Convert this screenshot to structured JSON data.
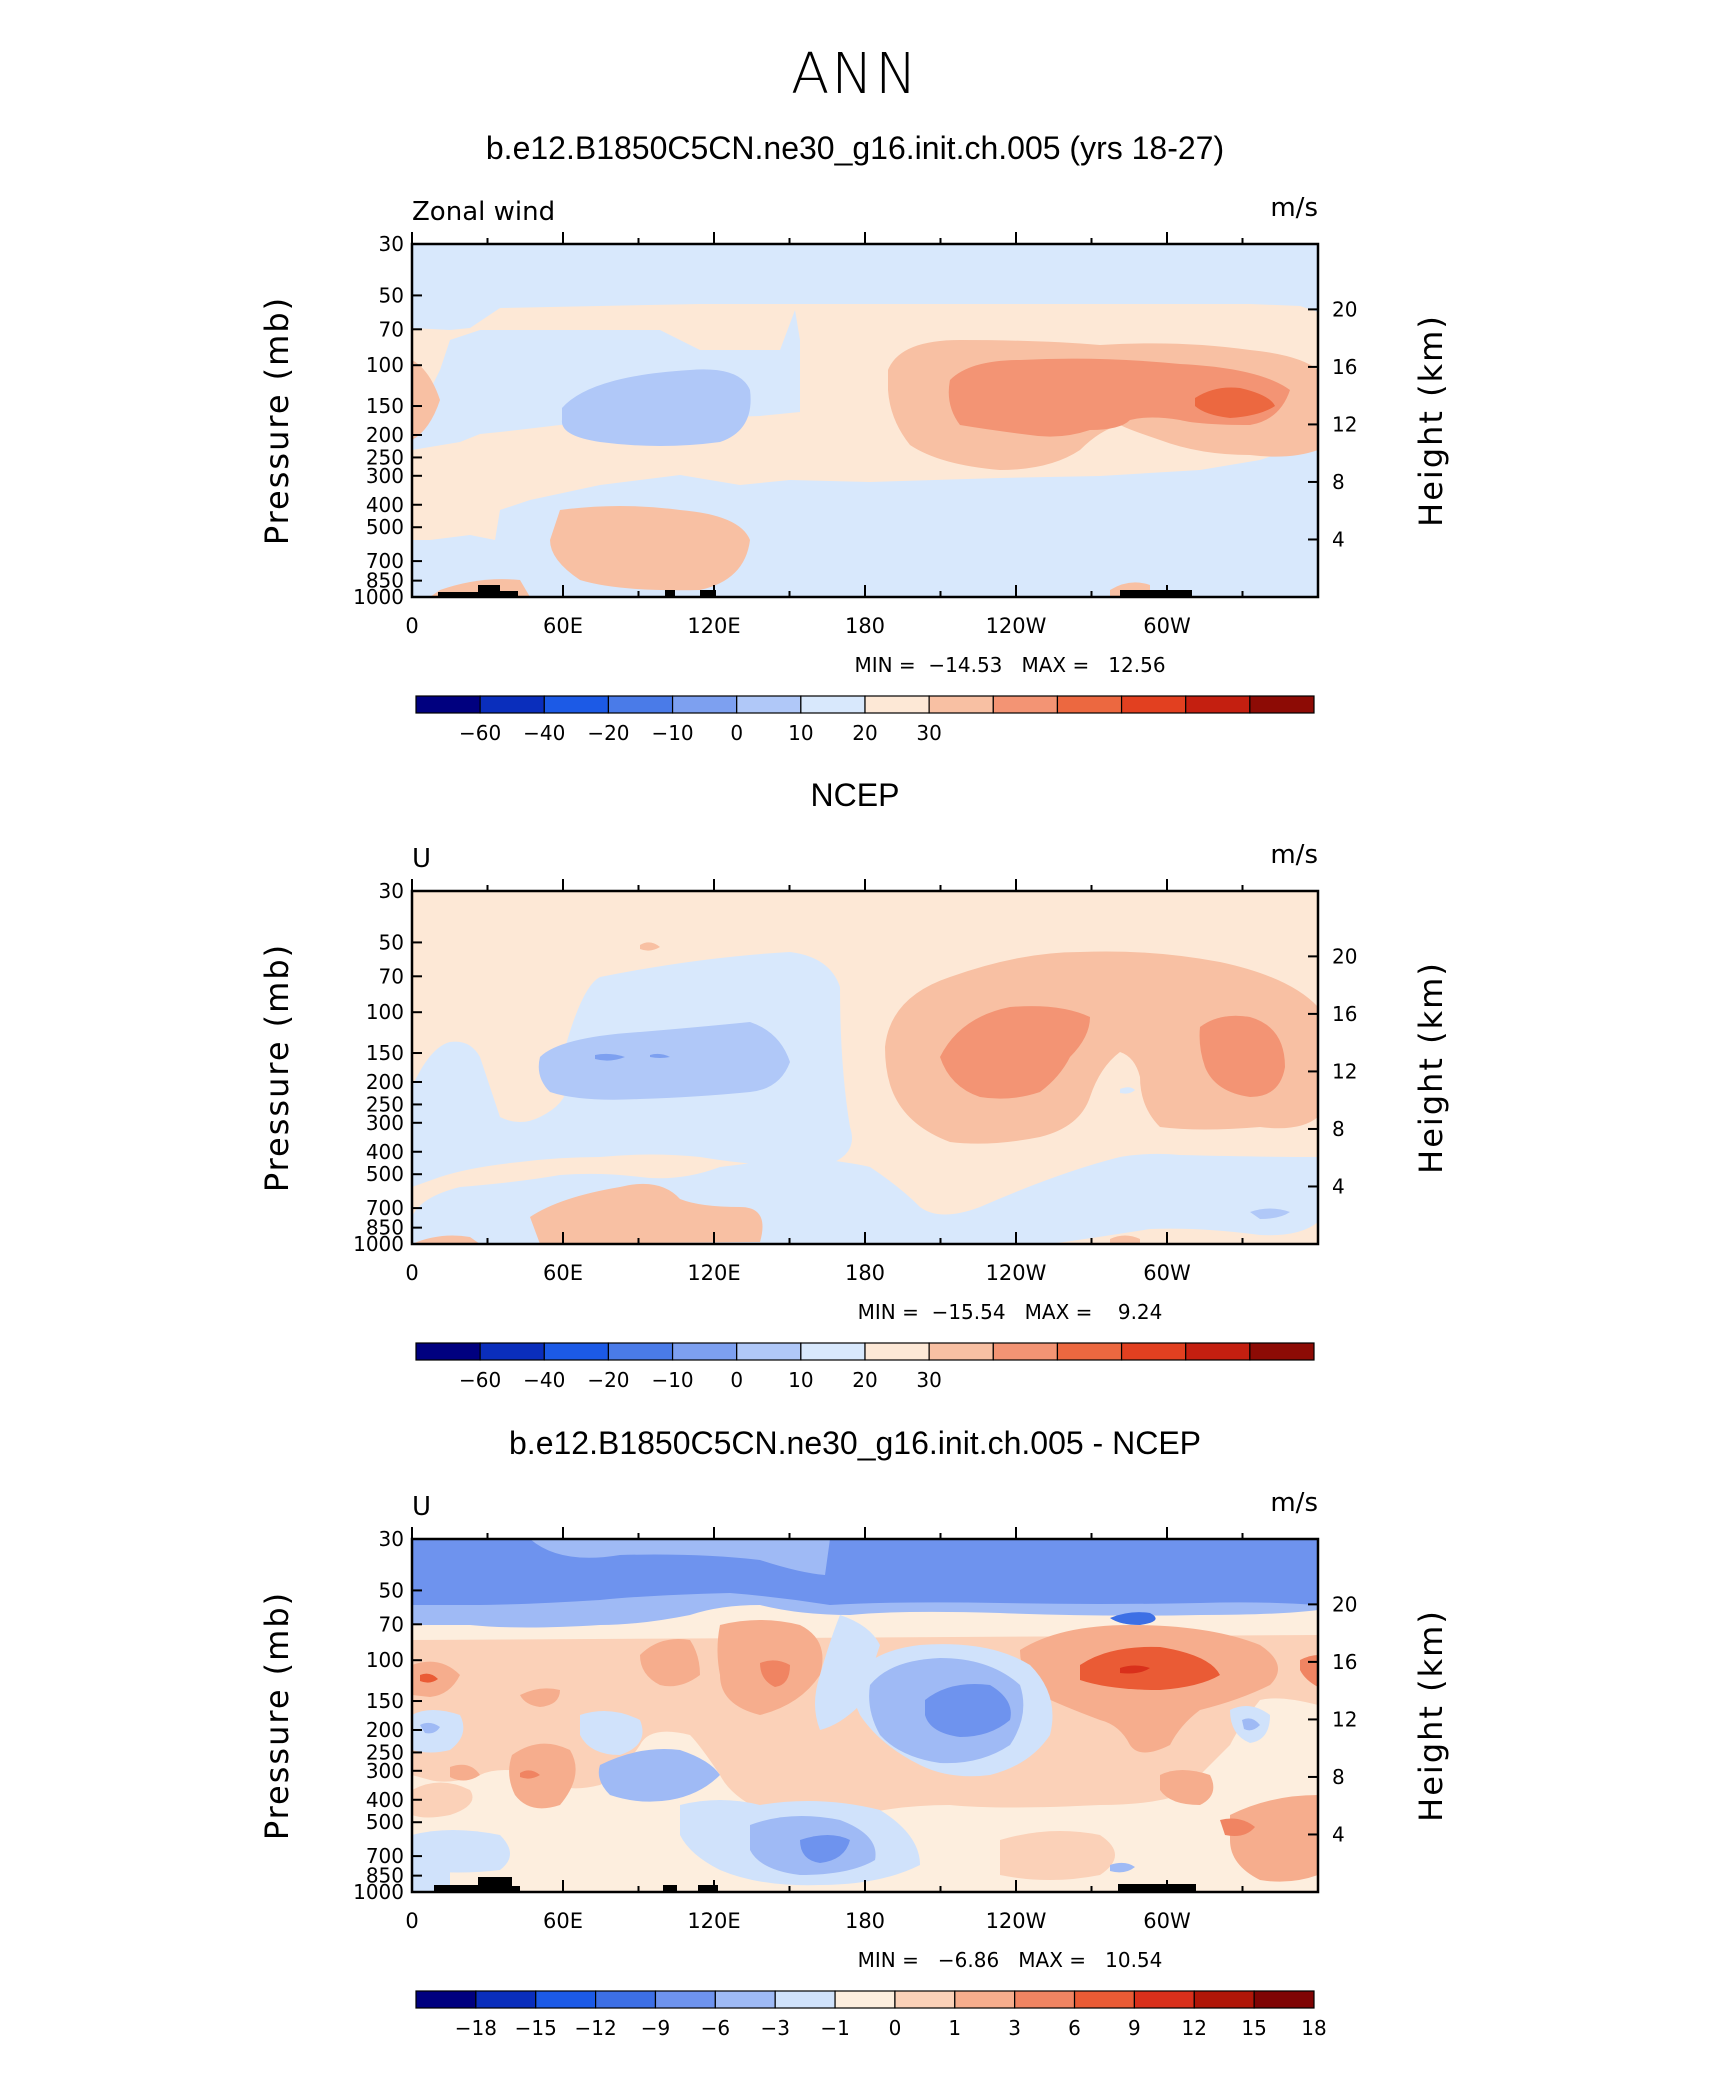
{
  "page": {
    "title": "ANN"
  },
  "common": {
    "y_axis_label": "Pressure (mb)",
    "right_axis_label": "Height (km)",
    "units": "m/s",
    "pressure_ticks": [
      "30",
      "50",
      "70",
      "100",
      "150",
      "200",
      "250",
      "300",
      "400",
      "500",
      "700",
      "850",
      "1000"
    ],
    "pressure_values": [
      30,
      50,
      70,
      100,
      150,
      200,
      250,
      300,
      400,
      500,
      700,
      850,
      1000
    ],
    "height_ticks": [
      "20",
      "16",
      "12",
      "8",
      "4"
    ],
    "height_values": [
      20,
      16,
      12,
      8,
      4
    ],
    "lon_ticks": [
      "0",
      "60E",
      "120E",
      "180",
      "120W",
      "60W"
    ],
    "lon_values": [
      0,
      60,
      120,
      180,
      240,
      300
    ],
    "lon_range": [
      0,
      360
    ],
    "pressure_range": [
      30,
      1000
    ],
    "colors_main": [
      "#00007f",
      "#0a2ebc",
      "#1c5ae6",
      "#4a7be8",
      "#7da0f0",
      "#b0c8f8",
      "#d8e8fc",
      "#fde8d6",
      "#f8c0a3",
      "#f39474",
      "#ec6840",
      "#e24020",
      "#c41f10",
      "#8d0b05"
    ],
    "colors_diff": [
      "#00007f",
      "#0a2ebc",
      "#1c5ae6",
      "#3d6fe5",
      "#6e93ee",
      "#9fbaf5",
      "#d0e2fb",
      "#fdeede",
      "#fbd1b8",
      "#f6ad8d",
      "#f08462",
      "#ea5b35",
      "#d9301b",
      "#b01608",
      "#7f0404"
    ]
  },
  "panels": [
    {
      "title": "b.e12.B1850C5CN.ne30_g16.init.ch.005 (yrs 18-27)",
      "variable_label": "Zonal wind",
      "min_max": "MIN =  −14.53   MAX =   12.56",
      "colorbar_labels": [
        "−60",
        "−40",
        "−20",
        "−10",
        "0",
        "10",
        "20",
        "30"
      ]
    },
    {
      "title": "NCEP",
      "variable_label": "U",
      "min_max": "MIN =  −15.54   MAX =    9.24",
      "colorbar_labels": [
        "−60",
        "−40",
        "−20",
        "−10",
        "0",
        "10",
        "20",
        "30"
      ]
    },
    {
      "title": "b.e12.B1850C5CN.ne30_g16.init.ch.005 - NCEP",
      "variable_label": "U",
      "min_max": "MIN =   −6.86   MAX =   10.54",
      "colorbar_labels": [
        "−18",
        "−15",
        "−12",
        "−9",
        "−6",
        "−3",
        "−1",
        "0",
        "1",
        "3",
        "6",
        "9",
        "12",
        "15",
        "18"
      ]
    }
  ],
  "chart_data": [
    {
      "type": "heatmap",
      "title": "b.e12.B1850C5CN.ne30_g16.init.ch.005 (yrs 18-27)",
      "variable": "Zonal wind",
      "units": "m/s",
      "x": "longitude",
      "y": "pressure (mb)",
      "xlim": [
        0,
        360
      ],
      "ylim": [
        1000,
        30
      ],
      "min": -14.53,
      "max": 12.56,
      "colorbar_levels": [
        -60,
        -40,
        -20,
        -10,
        0,
        10,
        20,
        30
      ]
    },
    {
      "type": "heatmap",
      "title": "NCEP",
      "variable": "U",
      "units": "m/s",
      "x": "longitude",
      "y": "pressure (mb)",
      "xlim": [
        0,
        360
      ],
      "ylim": [
        1000,
        30
      ],
      "min": -15.54,
      "max": 9.24,
      "colorbar_levels": [
        -60,
        -40,
        -20,
        -10,
        0,
        10,
        20,
        30
      ]
    },
    {
      "type": "heatmap",
      "title": "b.e12.B1850C5CN.ne30_g16.init.ch.005 - NCEP",
      "variable": "U",
      "units": "m/s",
      "x": "longitude",
      "y": "pressure (mb)",
      "xlim": [
        0,
        360
      ],
      "ylim": [
        1000,
        30
      ],
      "min": -6.86,
      "max": 10.54,
      "colorbar_levels": [
        -18,
        -15,
        -12,
        -9,
        -6,
        -3,
        -1,
        0,
        1,
        3,
        6,
        9,
        12,
        15,
        18
      ]
    }
  ]
}
